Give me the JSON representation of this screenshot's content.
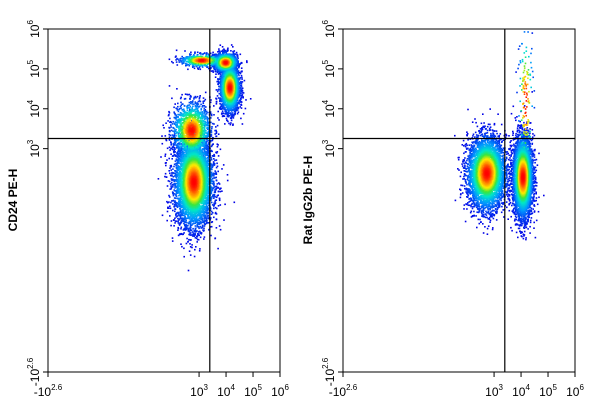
{
  "chart_data": [
    {
      "type": "scatter",
      "subtype": "flow-cytometry-density-plot",
      "ylabel": "CD24 PE-H",
      "xlabel": "",
      "xscale": "biexponential",
      "yscale": "biexponential",
      "x_ticks": [
        {
          "base": "-10",
          "exp": "2.6",
          "value": -398
        },
        {
          "base": "10",
          "exp": "3",
          "value": 1000
        },
        {
          "base": "10",
          "exp": "4",
          "value": 10000
        },
        {
          "base": "10",
          "exp": "5",
          "value": 100000
        },
        {
          "base": "10",
          "exp": "6",
          "value": 1000000
        }
      ],
      "y_ticks": [
        {
          "base": "-10",
          "exp": "2.6",
          "value": -398
        },
        {
          "base": "10",
          "exp": "3",
          "value": 1000
        },
        {
          "base": "10",
          "exp": "4",
          "value": 10000
        },
        {
          "base": "10",
          "exp": "5",
          "value": 100000
        },
        {
          "base": "10",
          "exp": "6",
          "value": 1000000
        }
      ],
      "quadrant_gate": {
        "x": 2500,
        "y": 1800
      },
      "populations": [
        {
          "x_center": 600,
          "y_center": 150,
          "x_spread": 0.35,
          "y_spread": 0.55,
          "count": 5200,
          "peak_color": "#ff2000"
        },
        {
          "x_center": 500,
          "y_center": 3000,
          "x_spread": 0.35,
          "y_spread": 0.35,
          "count": 1600,
          "peak_color": "#30c0ff"
        },
        {
          "x_center": 13000,
          "y_center": 35000,
          "x_spread": 0.18,
          "y_spread": 0.3,
          "count": 2600,
          "peak_color": "#ff0000"
        },
        {
          "x_center": 9000,
          "y_center": 150000,
          "x_spread": 0.22,
          "y_spread": 0.12,
          "count": 1300,
          "peak_color": "#ffe000"
        },
        {
          "x_center": 1200,
          "y_center": 170000,
          "x_spread": 0.4,
          "y_spread": 0.08,
          "count": 600,
          "peak_color": "#30c0ff"
        }
      ]
    },
    {
      "type": "scatter",
      "subtype": "flow-cytometry-density-plot",
      "ylabel": "Rat IgG2b PE-H",
      "xlabel": "",
      "xscale": "biexponential",
      "yscale": "biexponential",
      "x_ticks": [
        {
          "base": "-10",
          "exp": "2.6",
          "value": -398
        },
        {
          "base": "10",
          "exp": "3",
          "value": 1000
        },
        {
          "base": "10",
          "exp": "4",
          "value": 10000
        },
        {
          "base": "10",
          "exp": "5",
          "value": 100000
        },
        {
          "base": "10",
          "exp": "6",
          "value": 1000000
        }
      ],
      "y_ticks": [
        {
          "base": "-10",
          "exp": "2.6",
          "value": -398
        },
        {
          "base": "10",
          "exp": "3",
          "value": 1000
        },
        {
          "base": "10",
          "exp": "4",
          "value": 10000
        },
        {
          "base": "10",
          "exp": "5",
          "value": 100000
        },
        {
          "base": "10",
          "exp": "6",
          "value": 1000000
        }
      ],
      "quadrant_gate": {
        "x": 2500,
        "y": 1800
      },
      "populations": [
        {
          "x_center": 500,
          "y_center": 250,
          "x_spread": 0.35,
          "y_spread": 0.45,
          "count": 4300,
          "peak_color": "#ffd000"
        },
        {
          "x_center": 11000,
          "y_center": 200,
          "x_spread": 0.18,
          "y_spread": 0.5,
          "count": 4300,
          "peak_color": "#ff0000"
        },
        {
          "x_center": 14000,
          "y_center": 15000,
          "x_spread": 0.15,
          "y_spread": 1.0,
          "count": 150,
          "peak_color": "#0000ff"
        }
      ]
    }
  ]
}
